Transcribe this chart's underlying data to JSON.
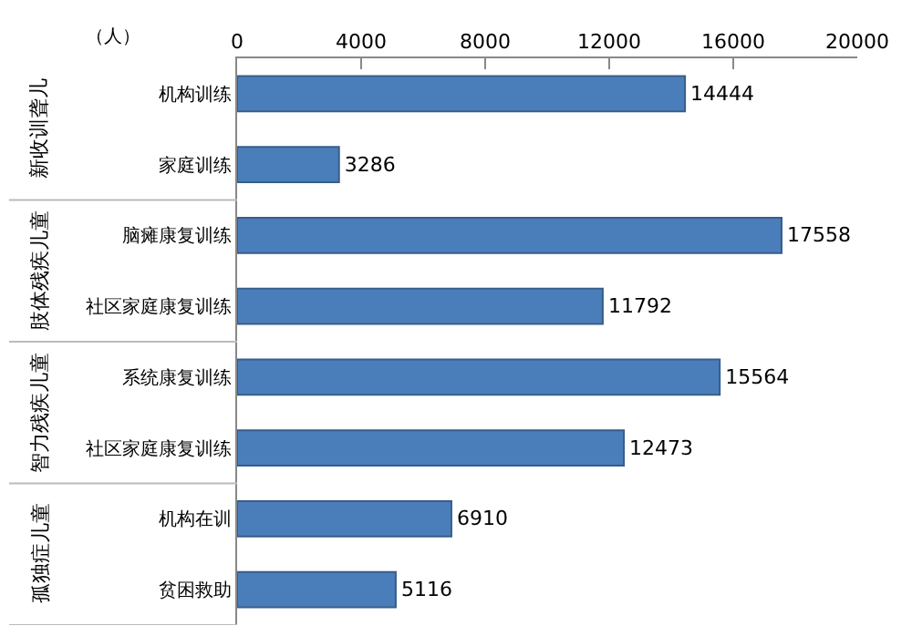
{
  "chart_data": {
    "type": "bar",
    "orientation": "horizontal",
    "xlabel": "（人）",
    "categories": [
      "机构训练",
      "家庭训练",
      "脑瘫康复训练",
      "社区家庭康复训练",
      "系统康复训练",
      "社区家庭康复训练",
      "机构在训",
      "贫困救助"
    ],
    "values": [
      14444,
      3286,
      17558,
      11792,
      15564,
      12473,
      6910,
      5116
    ],
    "color": "#4a7ebb",
    "xlim": [
      0,
      20000
    ],
    "xticks": [
      0,
      4000,
      8000,
      12000,
      16000,
      20000
    ],
    "data_labels": true,
    "grid": false,
    "legend": false,
    "annotations": [
      "新收训聋儿",
      "肢体残疾儿童",
      "智力残疾儿童",
      "孤独症儿童"
    ]
  }
}
